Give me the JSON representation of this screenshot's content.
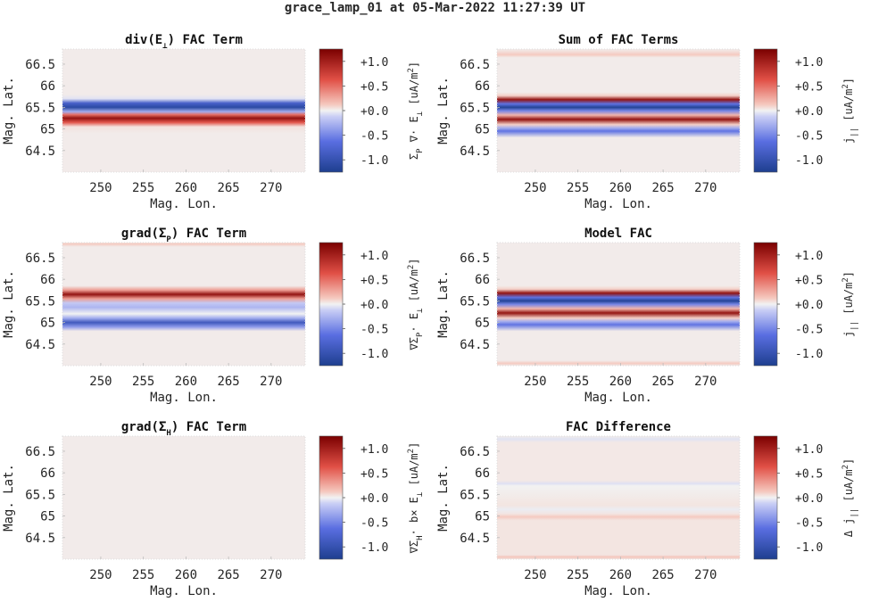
{
  "figure_title": "grace_lamp_01 at 05-Mar-2022 11:27:39 UT",
  "axes_labels": {
    "x": "Mag. Lon.",
    "y": "Mag. Lat."
  },
  "x_ticks": [
    "250",
    "255",
    "260",
    "265",
    "270"
  ],
  "y_ticks": [
    "66.5",
    "66",
    "65.5",
    "65",
    "64.5"
  ],
  "colorbar_ticks": [
    "+1.0",
    "+0.5",
    "+0.0",
    "-0.5",
    "-1.0"
  ],
  "colormap": {
    "low": "#1e3f8f",
    "mid": "#f2f2f2",
    "high": "#7a0000"
  },
  "chart_data": [
    {
      "type": "heatmap",
      "title": "div(E⊥) FAC Term",
      "title_parts": {
        "pre": "div(E",
        "sub": "⊥",
        "post": ") FAC Term"
      },
      "colorbar_label": "Σp ∇· E⊥ [uA/m²]",
      "colorbar_parts": [
        [
          "Σ",
          ""
        ],
        [
          "P",
          "sub"
        ],
        [
          " ∇· E",
          ""
        ],
        [
          "⊥",
          "sub"
        ],
        [
          " [uA/m",
          ""
        ],
        [
          "2",
          "sup"
        ],
        [
          "]",
          ""
        ]
      ],
      "xlim": [
        245.5,
        274
      ],
      "ylim": [
        64,
        66.85
      ],
      "clim": [
        -1.25,
        1.25
      ],
      "latitude_profile": [
        [
          64.0,
          0.02
        ],
        [
          64.9,
          0.02
        ],
        [
          65.05,
          0.05
        ],
        [
          65.15,
          0.6
        ],
        [
          65.25,
          1.1
        ],
        [
          65.33,
          0.5
        ],
        [
          65.4,
          -0.3
        ],
        [
          65.5,
          -1.1
        ],
        [
          65.6,
          -0.8
        ],
        [
          65.7,
          -0.05
        ],
        [
          65.8,
          0.02
        ],
        [
          66.85,
          0.02
        ]
      ]
    },
    {
      "type": "heatmap",
      "title": "Sum of FAC Terms",
      "colorbar_label": "j|| [uA/m²]",
      "colorbar_parts": [
        [
          "j",
          ""
        ],
        [
          "||",
          "sub"
        ],
        [
          " [uA/m",
          ""
        ],
        [
          "2",
          "sup"
        ],
        [
          "]",
          ""
        ]
      ],
      "xlim": [
        245.5,
        274
      ],
      "ylim": [
        64,
        66.85
      ],
      "clim": [
        -1.25,
        1.25
      ],
      "latitude_profile": [
        [
          64.0,
          0.02
        ],
        [
          64.8,
          0.02
        ],
        [
          64.95,
          -0.6
        ],
        [
          65.02,
          -0.3
        ],
        [
          65.1,
          0.1
        ],
        [
          65.22,
          1.1
        ],
        [
          65.32,
          0.2
        ],
        [
          65.42,
          -0.5
        ],
        [
          65.5,
          -1.2
        ],
        [
          65.58,
          -0.6
        ],
        [
          65.68,
          1.1
        ],
        [
          65.77,
          0.1
        ],
        [
          65.85,
          0.02
        ],
        [
          66.65,
          0.02
        ],
        [
          66.72,
          0.12
        ],
        [
          66.8,
          0.05
        ],
        [
          66.85,
          0.02
        ]
      ]
    },
    {
      "type": "heatmap",
      "title": "grad(ΣP) FAC Term",
      "title_parts": {
        "pre": "grad(Σ",
        "sub": "P",
        "post": ") FAC Term"
      },
      "colorbar_label": "∇ΣP· E⊥ [uA/m²]",
      "colorbar_parts": [
        [
          "∇Σ",
          ""
        ],
        [
          "P",
          "sub"
        ],
        [
          "· E",
          ""
        ],
        [
          "⊥",
          "sub"
        ],
        [
          " [uA/m",
          ""
        ],
        [
          "2",
          "sup"
        ],
        [
          "]",
          ""
        ]
      ],
      "xlim": [
        245.5,
        274
      ],
      "ylim": [
        64,
        66.85
      ],
      "clim": [
        -1.25,
        1.25
      ],
      "latitude_profile": [
        [
          64.0,
          0.02
        ],
        [
          64.8,
          0.02
        ],
        [
          64.9,
          -0.4
        ],
        [
          65.0,
          -0.9
        ],
        [
          65.1,
          -0.3
        ],
        [
          65.2,
          0.0
        ],
        [
          65.35,
          -0.25
        ],
        [
          65.45,
          -0.15
        ],
        [
          65.55,
          0.3
        ],
        [
          65.65,
          1.1
        ],
        [
          65.75,
          0.3
        ],
        [
          65.85,
          0.02
        ],
        [
          66.75,
          0.02
        ],
        [
          66.82,
          0.12
        ],
        [
          66.85,
          0.05
        ]
      ]
    },
    {
      "type": "heatmap",
      "title": "Model FAC",
      "colorbar_label": "j|| [uA/m²]",
      "colorbar_parts": [
        [
          "j",
          ""
        ],
        [
          "||",
          "sub"
        ],
        [
          " [uA/m",
          ""
        ],
        [
          "2",
          "sup"
        ],
        [
          "]",
          ""
        ]
      ],
      "xlim": [
        245.5,
        274
      ],
      "ylim": [
        64,
        66.85
      ],
      "clim": [
        -1.25,
        1.25
      ],
      "latitude_profile": [
        [
          64.0,
          0.02
        ],
        [
          64.05,
          0.12
        ],
        [
          64.12,
          0.02
        ],
        [
          64.8,
          0.02
        ],
        [
          64.95,
          -0.6
        ],
        [
          65.02,
          -0.3
        ],
        [
          65.1,
          0.1
        ],
        [
          65.22,
          1.1
        ],
        [
          65.32,
          0.2
        ],
        [
          65.42,
          -0.5
        ],
        [
          65.5,
          -1.2
        ],
        [
          65.58,
          -0.6
        ],
        [
          65.68,
          1.1
        ],
        [
          65.77,
          0.1
        ],
        [
          65.85,
          0.02
        ],
        [
          66.85,
          0.02
        ]
      ]
    },
    {
      "type": "heatmap",
      "title": "grad(ΣH) FAC Term",
      "title_parts": {
        "pre": "grad(Σ",
        "sub": "H",
        "post": ") FAC Term"
      },
      "colorbar_label": "∇ΣH· b× E⊥ [uA/m²]",
      "colorbar_parts": [
        [
          "∇Σ",
          ""
        ],
        [
          "H",
          "sub"
        ],
        [
          "· b× E",
          ""
        ],
        [
          "⊥",
          "sub"
        ],
        [
          " [uA/m",
          ""
        ],
        [
          "2",
          "sup"
        ],
        [
          "]",
          ""
        ]
      ],
      "xlim": [
        245.5,
        274
      ],
      "ylim": [
        64,
        66.85
      ],
      "clim": [
        -1.25,
        1.25
      ],
      "latitude_profile": [
        [
          64.0,
          0.02
        ],
        [
          66.85,
          0.02
        ]
      ]
    },
    {
      "type": "heatmap",
      "title": "FAC Difference",
      "colorbar_label": "Δ j|| [uA/m²]",
      "colorbar_parts": [
        [
          "Δ j",
          ""
        ],
        [
          "||",
          "sub"
        ],
        [
          " [uA/m",
          ""
        ],
        [
          "2",
          "sup"
        ],
        [
          "]",
          ""
        ]
      ],
      "xlim": [
        245.5,
        274
      ],
      "ylim": [
        64,
        66.85
      ],
      "clim": [
        -1.25,
        1.25
      ],
      "latitude_profile": [
        [
          64.0,
          0.04
        ],
        [
          64.05,
          0.14
        ],
        [
          64.1,
          0.04
        ],
        [
          64.9,
          0.04
        ],
        [
          64.98,
          0.12
        ],
        [
          65.05,
          0.04
        ],
        [
          65.15,
          -0.02
        ],
        [
          65.25,
          0.04
        ],
        [
          65.7,
          0.0
        ],
        [
          65.75,
          -0.06
        ],
        [
          65.82,
          0.03
        ],
        [
          66.7,
          0.03
        ],
        [
          66.78,
          -0.05
        ],
        [
          66.85,
          0.02
        ]
      ]
    }
  ]
}
